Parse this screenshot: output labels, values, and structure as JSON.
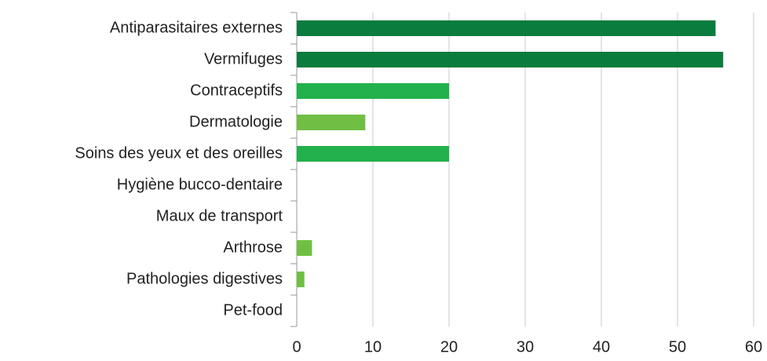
{
  "chart_data": {
    "type": "barh",
    "categories": [
      "Antiparasitaires externes",
      "Vermifuges",
      "Contraceptifs",
      "Dermatologie",
      "Soins des yeux et des oreilles",
      "Hygiène bucco-dentaire",
      "Maux de transport",
      "Arthrose",
      "Pathologies digestives",
      "Pet-food"
    ],
    "values": [
      55,
      56,
      20,
      9,
      20,
      0,
      0,
      2,
      1,
      0
    ],
    "colors": [
      "#0a7c3e",
      "#0a7c3e",
      "#22b14c",
      "#70bf44",
      "#22b14c",
      "#22b14c",
      "#22b14c",
      "#70bf44",
      "#70bf44",
      "#70bf44"
    ],
    "xlim": [
      0,
      60
    ],
    "xticks": [
      0,
      10,
      20,
      30,
      40,
      50,
      60
    ],
    "grid": true
  }
}
